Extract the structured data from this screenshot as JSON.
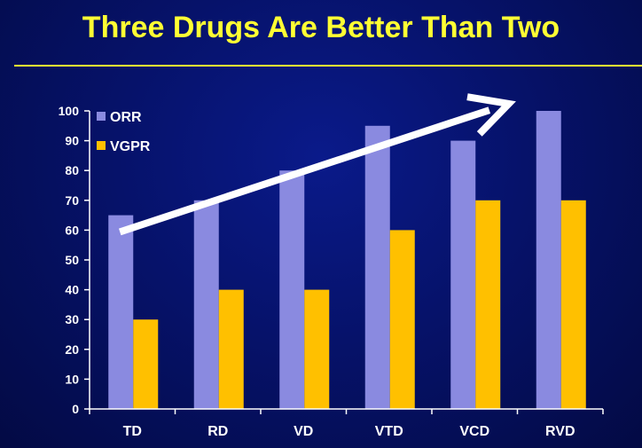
{
  "slide": {
    "title": "Three Drugs Are Better Than Two"
  },
  "colors": {
    "background": "#06126a",
    "title": "#ffff33",
    "orr": "#8a8ae0",
    "vgpr": "#ffc000",
    "axis": "#ffffff",
    "arrow": "#ffffff"
  },
  "chart_data": {
    "type": "bar",
    "title": "",
    "xlabel": "",
    "ylabel": "",
    "categories": [
      "TD",
      "RD",
      "VD",
      "VTD",
      "VCD",
      "RVD"
    ],
    "ylim": [
      0,
      100
    ],
    "yticks": [
      0,
      10,
      20,
      30,
      40,
      50,
      60,
      70,
      80,
      90,
      100
    ],
    "grid": false,
    "legend": "top-left",
    "series": [
      {
        "name": "ORR",
        "values": [
          65,
          70,
          80,
          95,
          90,
          100
        ]
      },
      {
        "name": "VGPR",
        "values": [
          30,
          40,
          40,
          60,
          70,
          70
        ]
      }
    ],
    "annotations": [
      {
        "type": "arrow",
        "from": [
          "TD",
          60
        ],
        "to": [
          "RVD",
          103
        ]
      }
    ]
  }
}
